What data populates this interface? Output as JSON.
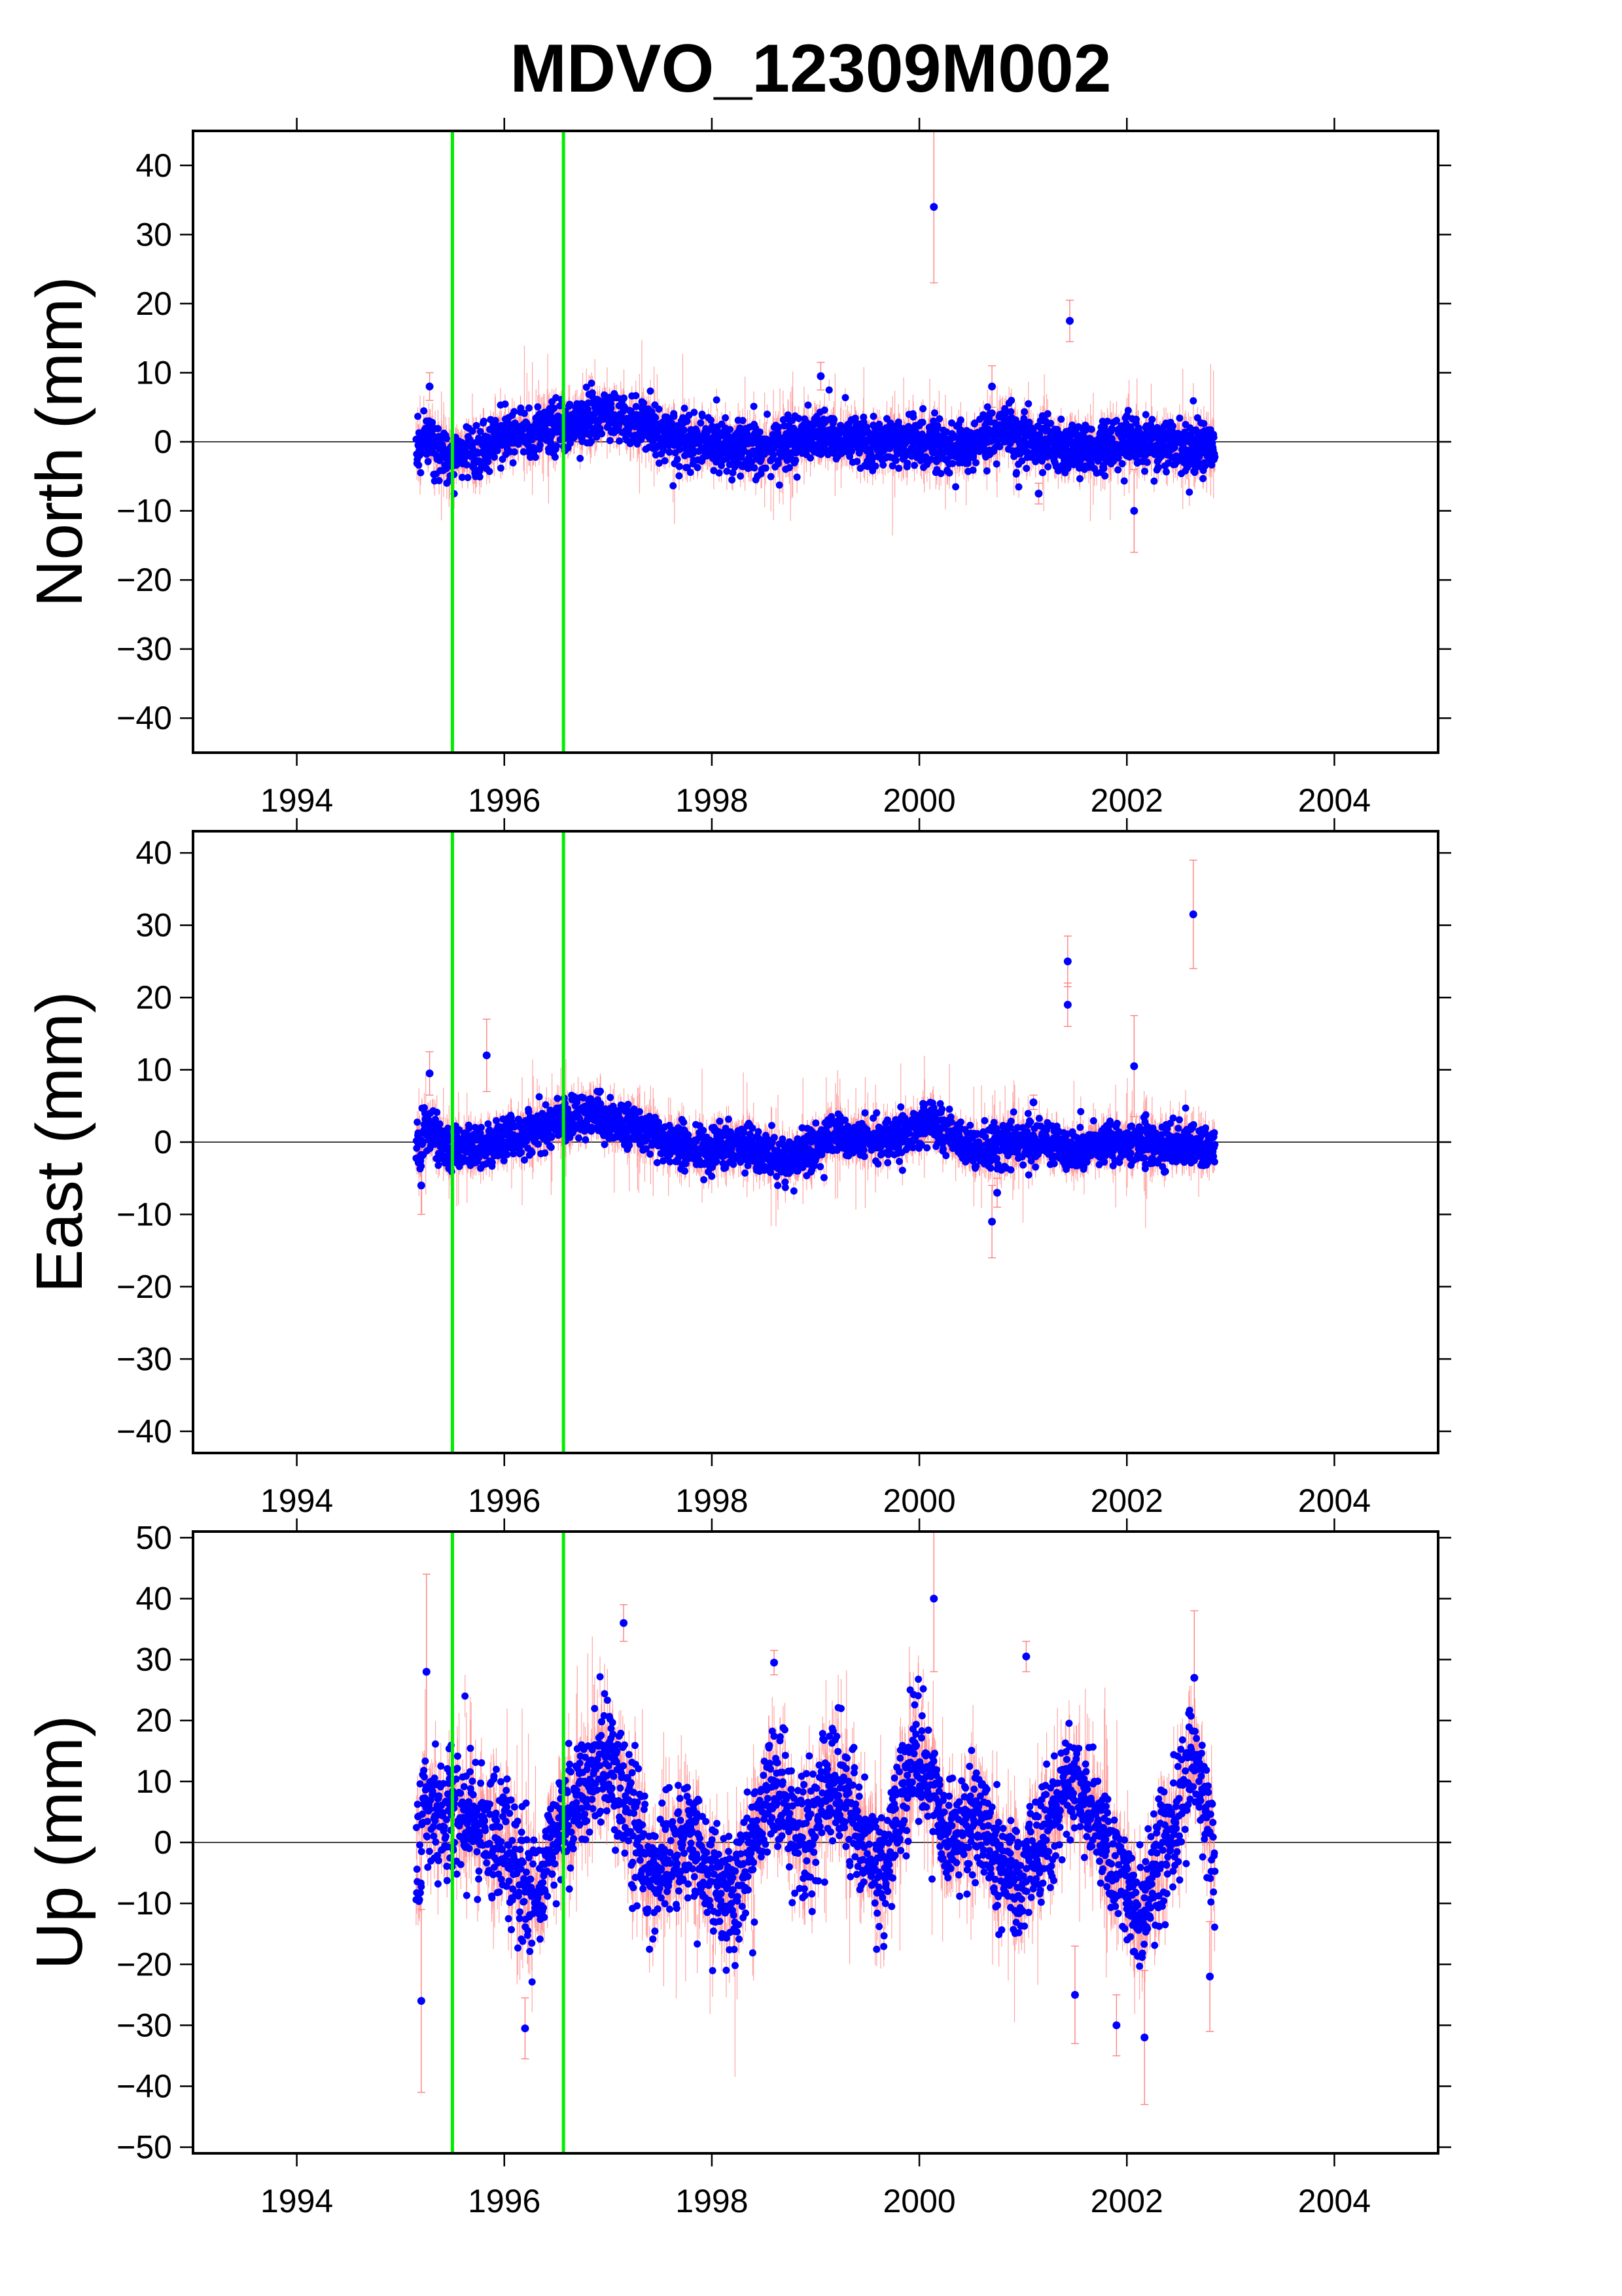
{
  "title": "MDVO_12309M002",
  "colors": {
    "points": "#0000ff",
    "errorbars": "#ff7f7f",
    "events": "#00ee00",
    "frame": "#000000",
    "zeroline": "#000000"
  },
  "chart_data": [
    {
      "type": "scatter",
      "component": "north",
      "ylabel": "North (mm)",
      "xlim": [
        1993,
        2005
      ],
      "ylim": [
        -45,
        45
      ],
      "xticks": [
        "1994",
        "1996",
        "1998",
        "2000",
        "2002",
        "2004"
      ],
      "yticks": [
        "40",
        "30",
        "20",
        "10",
        "0",
        "−10",
        "−20",
        "−30",
        "−40"
      ],
      "event_lines_x": [
        1995.5,
        1996.57
      ],
      "zero_line": 0,
      "grid": false,
      "data_range_x": [
        1995.15,
        2002.85
      ],
      "trend_profile": [
        {
          "x": 1995.2,
          "y": 0
        },
        {
          "x": 1995.5,
          "y": -2
        },
        {
          "x": 1995.8,
          "y": -1
        },
        {
          "x": 1996.0,
          "y": 1
        },
        {
          "x": 1996.5,
          "y": 2
        },
        {
          "x": 1997.0,
          "y": 4
        },
        {
          "x": 1997.3,
          "y": 3
        },
        {
          "x": 1997.8,
          "y": 0
        },
        {
          "x": 1998.5,
          "y": -1
        },
        {
          "x": 1999.0,
          "y": 1
        },
        {
          "x": 1999.5,
          "y": 0
        },
        {
          "x": 2000.0,
          "y": 0
        },
        {
          "x": 2000.5,
          "y": -1
        },
        {
          "x": 2000.8,
          "y": 2
        },
        {
          "x": 2001.2,
          "y": 0
        },
        {
          "x": 2001.6,
          "y": -1
        },
        {
          "x": 2002.0,
          "y": 0
        },
        {
          "x": 2002.85,
          "y": -1
        }
      ],
      "scatter_sd": 1.8,
      "errbar_sd": 2.0,
      "outliers": [
        {
          "x": 2000.14,
          "y": 34,
          "err": 11
        },
        {
          "x": 2001.45,
          "y": 17.5,
          "err": 3
        },
        {
          "x": 2002.07,
          "y": -10,
          "err": 6
        },
        {
          "x": 2001.15,
          "y": -7.5,
          "err": 1.5
        },
        {
          "x": 2000.7,
          "y": 8,
          "err": 3
        },
        {
          "x": 1999.05,
          "y": 9.5,
          "err": 2
        },
        {
          "x": 1995.28,
          "y": 8,
          "err": 2
        }
      ]
    },
    {
      "type": "scatter",
      "component": "east",
      "ylabel": "East (mm)",
      "xlim": [
        1993,
        2005
      ],
      "ylim": [
        -43,
        43
      ],
      "xticks": [
        "1994",
        "1996",
        "1998",
        "2000",
        "2002",
        "2004"
      ],
      "yticks": [
        "40",
        "30",
        "20",
        "10",
        "0",
        "−10",
        "−20",
        "−30",
        "−40"
      ],
      "event_lines_x": [
        1995.5,
        1996.57
      ],
      "zero_line": 0,
      "grid": false,
      "data_range_x": [
        1995.15,
        2002.85
      ],
      "trend_profile": [
        {
          "x": 1995.2,
          "y": 2
        },
        {
          "x": 1995.5,
          "y": -1
        },
        {
          "x": 1995.9,
          "y": 0
        },
        {
          "x": 1996.4,
          "y": 2
        },
        {
          "x": 1996.8,
          "y": 4
        },
        {
          "x": 1997.3,
          "y": 2
        },
        {
          "x": 1997.8,
          "y": -1
        },
        {
          "x": 1998.3,
          "y": 0
        },
        {
          "x": 1998.7,
          "y": -3
        },
        {
          "x": 1999.2,
          "y": 1
        },
        {
          "x": 1999.6,
          "y": 0
        },
        {
          "x": 2000.1,
          "y": 3
        },
        {
          "x": 2000.5,
          "y": -1
        },
        {
          "x": 2001.0,
          "y": 0
        },
        {
          "x": 2001.5,
          "y": -1
        },
        {
          "x": 2002.0,
          "y": 0
        },
        {
          "x": 2002.85,
          "y": -1
        }
      ],
      "scatter_sd": 1.5,
      "errbar_sd": 1.8,
      "outliers": [
        {
          "x": 2002.64,
          "y": 31.5,
          "err": 7.5
        },
        {
          "x": 2001.43,
          "y": 25,
          "err": 3.5
        },
        {
          "x": 2001.43,
          "y": 19,
          "err": 3
        },
        {
          "x": 1995.83,
          "y": 12,
          "err": 5
        },
        {
          "x": 2002.07,
          "y": 10.5,
          "err": 7
        },
        {
          "x": 2000.7,
          "y": -11,
          "err": 5
        },
        {
          "x": 2000.75,
          "y": -7,
          "err": 2
        },
        {
          "x": 1995.2,
          "y": -6,
          "err": 4
        },
        {
          "x": 1995.28,
          "y": 9.5,
          "err": 3
        },
        {
          "x": 2001.1,
          "y": 5.5,
          "err": 1
        }
      ]
    },
    {
      "type": "scatter",
      "component": "up",
      "ylabel": "Up (mm)",
      "xlim": [
        1993,
        2005
      ],
      "ylim": [
        -51,
        51
      ],
      "xticks": [
        "1994",
        "1996",
        "1998",
        "2000",
        "2002",
        "2004"
      ],
      "yticks": [
        "50",
        "40",
        "30",
        "20",
        "10",
        "0",
        "−10",
        "−20",
        "−30",
        "−40",
        "−50"
      ],
      "event_lines_x": [
        1995.5,
        1996.57
      ],
      "zero_line": 0,
      "grid": false,
      "data_range_x": [
        1995.15,
        2002.85
      ],
      "trend_profile": [
        {
          "x": 1995.2,
          "y": 5
        },
        {
          "x": 1995.6,
          "y": 5
        },
        {
          "x": 1996.0,
          "y": 0
        },
        {
          "x": 1996.25,
          "y": -10
        },
        {
          "x": 1996.6,
          "y": 5
        },
        {
          "x": 1997.0,
          "y": 15
        },
        {
          "x": 1997.4,
          "y": -5
        },
        {
          "x": 1997.8,
          "y": 0
        },
        {
          "x": 1998.2,
          "y": -10
        },
        {
          "x": 1998.6,
          "y": 10
        },
        {
          "x": 1998.9,
          "y": 0
        },
        {
          "x": 1999.2,
          "y": 10
        },
        {
          "x": 1999.6,
          "y": -5
        },
        {
          "x": 2000.0,
          "y": 15
        },
        {
          "x": 2000.3,
          "y": 0
        },
        {
          "x": 2000.6,
          "y": 5
        },
        {
          "x": 2000.9,
          "y": -8
        },
        {
          "x": 2001.5,
          "y": 10
        },
        {
          "x": 2001.8,
          "y": 0
        },
        {
          "x": 2002.1,
          "y": -12
        },
        {
          "x": 2002.5,
          "y": 5
        },
        {
          "x": 2002.65,
          "y": 15
        },
        {
          "x": 2002.85,
          "y": -5
        }
      ],
      "scatter_sd": 5,
      "errbar_sd": 4,
      "outliers": [
        {
          "x": 2000.14,
          "y": 40,
          "err": 12
        },
        {
          "x": 1997.15,
          "y": 36,
          "err": 3
        },
        {
          "x": 2001.03,
          "y": 30.5,
          "err": 2.5
        },
        {
          "x": 1998.6,
          "y": 29.5,
          "err": 2
        },
        {
          "x": 2002.65,
          "y": 27,
          "err": 11
        },
        {
          "x": 1995.2,
          "y": -26,
          "err": 15
        },
        {
          "x": 1996.2,
          "y": -30.5,
          "err": 5
        },
        {
          "x": 2001.5,
          "y": -25,
          "err": 8
        },
        {
          "x": 2001.9,
          "y": -30,
          "err": 5
        },
        {
          "x": 2002.17,
          "y": -32,
          "err": 11
        },
        {
          "x": 2002.8,
          "y": -22,
          "err": 9
        },
        {
          "x": 1995.25,
          "y": 28,
          "err": 16
        }
      ]
    }
  ]
}
